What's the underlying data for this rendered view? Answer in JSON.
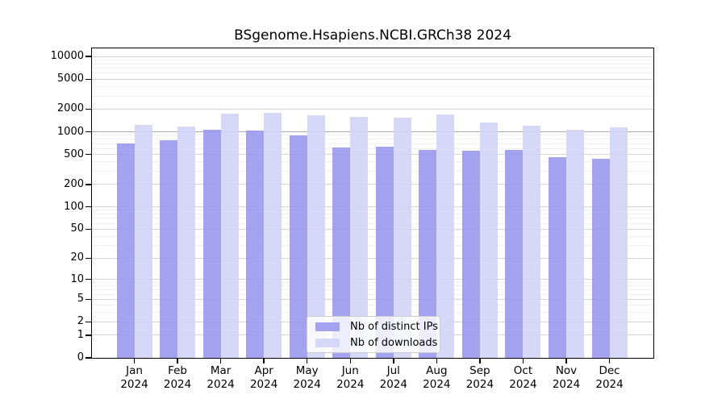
{
  "title": "BSgenome.Hsapiens.NCBI.GRCh38 2024",
  "chart_data": {
    "type": "bar",
    "title": "BSgenome.Hsapiens.NCBI.GRCh38 2024",
    "categories": [
      "Jan",
      "Feb",
      "Mar",
      "Apr",
      "May",
      "Jun",
      "Jul",
      "Aug",
      "Sep",
      "Oct",
      "Nov",
      "Dec"
    ],
    "year": "2024",
    "series": [
      {
        "name": "Nb of distinct IPs",
        "color": "#9999ee",
        "alpha": 0.9,
        "values": [
          700,
          770,
          1060,
          1045,
          890,
          625,
          640,
          570,
          565,
          575,
          460,
          435
        ]
      },
      {
        "name": "Nb of downloads",
        "color": "#d3d3f7",
        "alpha": 0.9,
        "values": [
          1240,
          1190,
          1750,
          1780,
          1645,
          1580,
          1540,
          1690,
          1330,
          1210,
          1070,
          1140
        ]
      }
    ],
    "y_scale": "log1p",
    "y_ticks": [
      0,
      1,
      2,
      5,
      10,
      20,
      50,
      100,
      200,
      500,
      1000,
      2000,
      5000,
      10000
    ],
    "ylim": [
      0,
      12900
    ],
    "xlabel": "",
    "ylabel": "",
    "grid": true,
    "legend_position": "lower-center",
    "grid_colors": {
      "major_1000": "#a8a8a8",
      "labeled": "#d6d6d6",
      "minor": "#f0f0f0"
    }
  }
}
